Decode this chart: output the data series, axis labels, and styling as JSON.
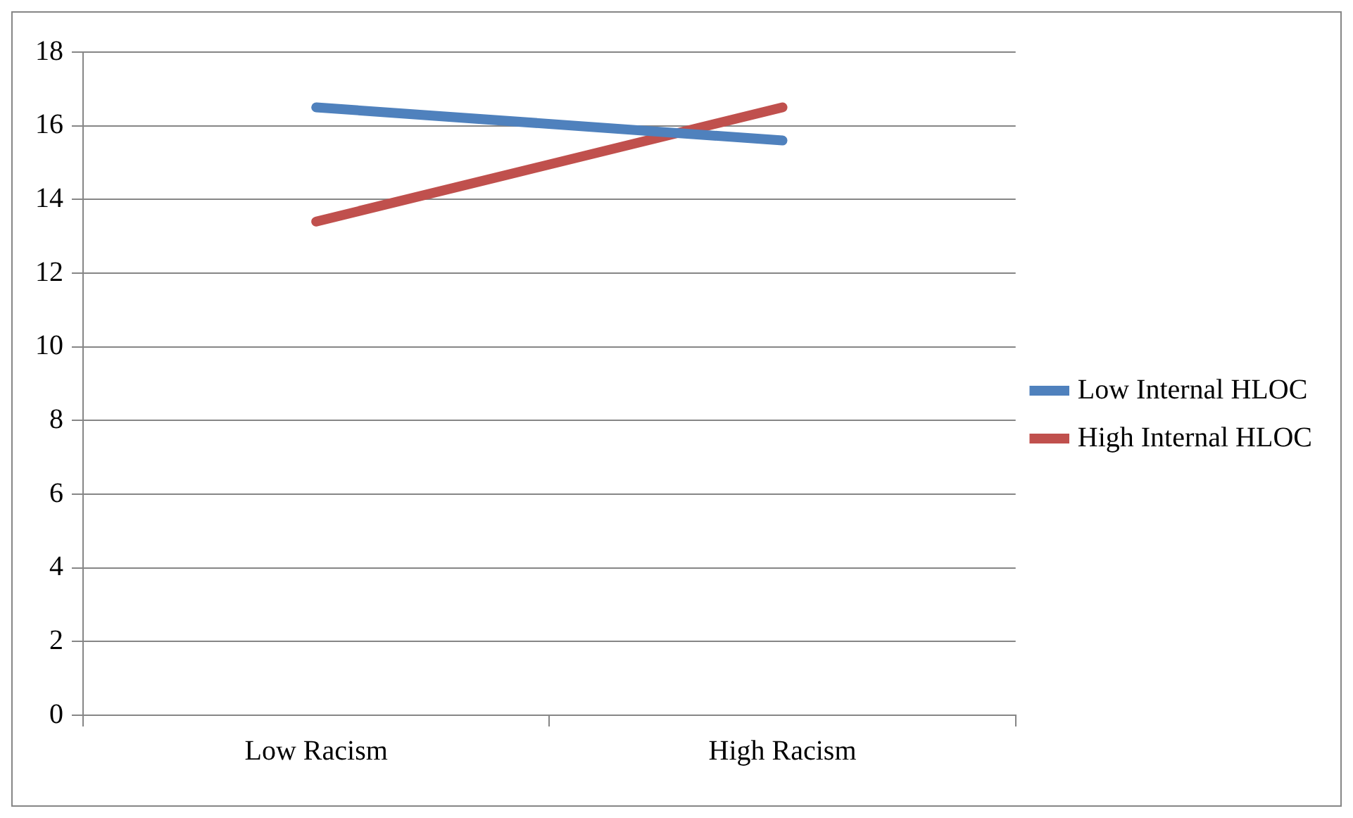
{
  "chart_data": {
    "type": "line",
    "categories": [
      "Low Racism",
      "High Racism"
    ],
    "series": [
      {
        "name": "Low Internal HLOC",
        "color": "#4f81bd",
        "values": [
          16.5,
          15.6
        ]
      },
      {
        "name": "High Internal HLOC",
        "color": "#c0504d",
        "values": [
          13.4,
          16.5
        ]
      }
    ],
    "ylim": [
      0,
      18
    ],
    "yticks": [
      0,
      2,
      4,
      6,
      8,
      10,
      12,
      14,
      16,
      18
    ],
    "grid": "y",
    "legend": "right",
    "marker": "none",
    "line_style": "solid"
  }
}
